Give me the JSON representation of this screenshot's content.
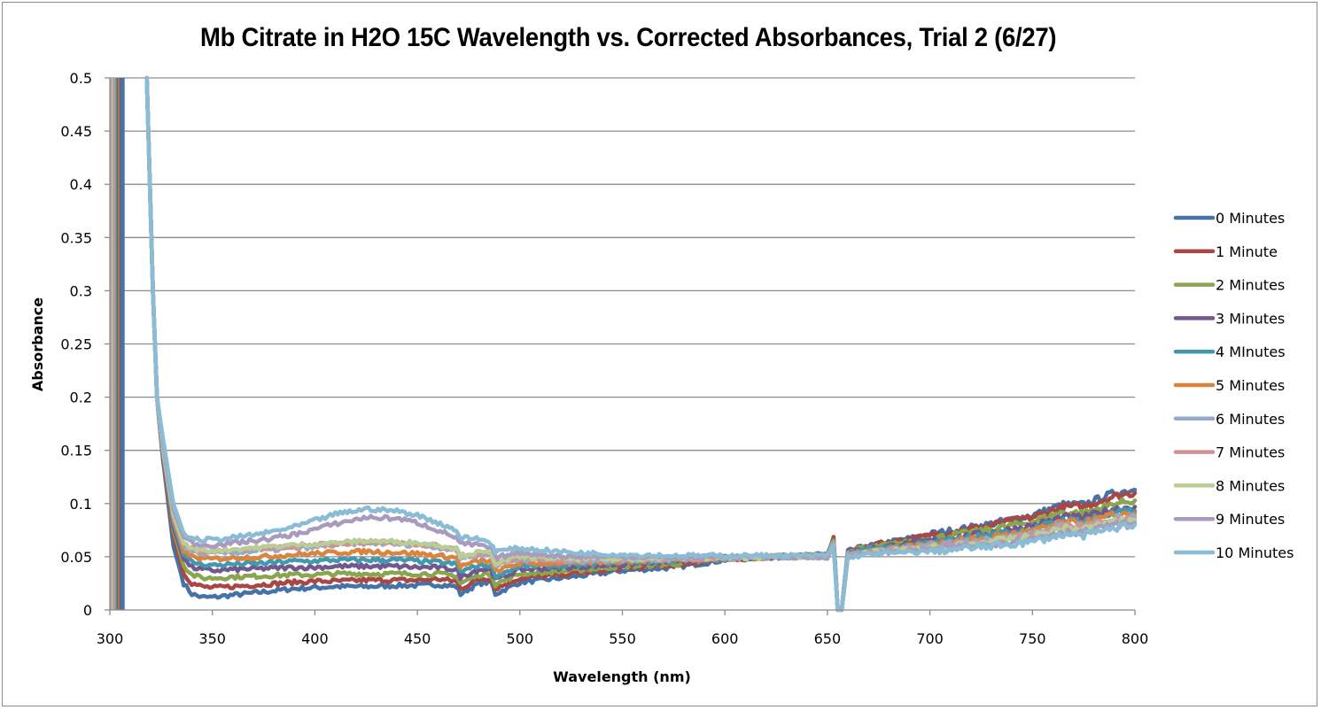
{
  "chart_data": {
    "type": "line",
    "title": "Mb Citrate in H2O 15C Wavelength vs. Corrected Absorbances, Trial 2 (6/27)",
    "xlabel": "Wavelength (nm)",
    "ylabel": "Absorbance",
    "xlim": [
      300,
      800
    ],
    "ylim": [
      0,
      0.5
    ],
    "xticks": [
      300,
      350,
      400,
      450,
      500,
      550,
      600,
      650,
      700,
      750,
      800
    ],
    "xtick_labels": [
      "300",
      "350",
      "400",
      "450",
      "500",
      "550",
      "600",
      "650",
      "700",
      "750",
      "800"
    ],
    "yticks": [
      0,
      0.05,
      0.1,
      0.15,
      0.2,
      0.25,
      0.3,
      0.35,
      0.4,
      0.45,
      0.5
    ],
    "ytick_labels": [
      "0",
      "0.05",
      "0.1",
      "0.15",
      "0.2",
      "0.25",
      "0.3",
      "0.35",
      "0.4",
      "0.45",
      "0.5"
    ],
    "grid": "horizontal",
    "legend_position": "right",
    "x": [
      318,
      321,
      323,
      326,
      331,
      336,
      340,
      345,
      350,
      360,
      375,
      390,
      400,
      410,
      425,
      440,
      450,
      460,
      469,
      471,
      480,
      486,
      488,
      500,
      525,
      550,
      575,
      600,
      625,
      650,
      653,
      655,
      657,
      660,
      665,
      675,
      700,
      725,
      750,
      765,
      775,
      790,
      800
    ],
    "series": [
      {
        "name": "0 Minutes",
        "color": "#4572a7",
        "values": [
          0.5,
          0.3,
          0.2,
          0.14,
          0.06,
          0.025,
          0.015,
          0.012,
          0.012,
          0.014,
          0.017,
          0.02,
          0.021,
          0.022,
          0.022,
          0.023,
          0.023,
          0.024,
          0.022,
          0.015,
          0.025,
          0.026,
          0.015,
          0.026,
          0.031,
          0.037,
          0.04,
          0.047,
          0.05,
          0.052,
          0.068,
          0.0,
          0.0,
          0.055,
          0.058,
          0.062,
          0.071,
          0.079,
          0.089,
          0.099,
          0.099,
          0.11,
          0.113
        ]
      },
      {
        "name": "1 Minute",
        "color": "#aa4643",
        "values": [
          0.5,
          0.3,
          0.2,
          0.14,
          0.07,
          0.035,
          0.025,
          0.022,
          0.021,
          0.022,
          0.024,
          0.026,
          0.027,
          0.027,
          0.028,
          0.028,
          0.028,
          0.029,
          0.027,
          0.02,
          0.029,
          0.03,
          0.02,
          0.03,
          0.034,
          0.039,
          0.042,
          0.048,
          0.05,
          0.052,
          0.067,
          0.0,
          0.0,
          0.055,
          0.058,
          0.062,
          0.07,
          0.078,
          0.087,
          0.097,
          0.097,
          0.107,
          0.11
        ]
      },
      {
        "name": "2 Minutes",
        "color": "#89a54e",
        "values": [
          0.5,
          0.3,
          0.2,
          0.14,
          0.075,
          0.042,
          0.033,
          0.03,
          0.03,
          0.031,
          0.032,
          0.033,
          0.033,
          0.034,
          0.034,
          0.034,
          0.034,
          0.034,
          0.032,
          0.025,
          0.033,
          0.034,
          0.024,
          0.034,
          0.037,
          0.041,
          0.043,
          0.048,
          0.05,
          0.051,
          0.066,
          0.0,
          0.0,
          0.054,
          0.057,
          0.06,
          0.067,
          0.074,
          0.083,
          0.092,
          0.091,
          0.1,
          0.103
        ]
      },
      {
        "name": "3 Minutes",
        "color": "#71588f",
        "values": [
          0.5,
          0.3,
          0.2,
          0.14,
          0.078,
          0.048,
          0.04,
          0.038,
          0.037,
          0.038,
          0.039,
          0.04,
          0.04,
          0.041,
          0.041,
          0.041,
          0.04,
          0.04,
          0.038,
          0.031,
          0.038,
          0.038,
          0.028,
          0.038,
          0.04,
          0.043,
          0.045,
          0.049,
          0.05,
          0.051,
          0.065,
          0.0,
          0.0,
          0.053,
          0.056,
          0.059,
          0.065,
          0.071,
          0.079,
          0.087,
          0.087,
          0.095,
          0.097
        ]
      },
      {
        "name": "4 MInutes",
        "color": "#4198af",
        "values": [
          0.5,
          0.3,
          0.2,
          0.145,
          0.082,
          0.052,
          0.045,
          0.043,
          0.042,
          0.043,
          0.044,
          0.046,
          0.046,
          0.047,
          0.047,
          0.047,
          0.046,
          0.045,
          0.043,
          0.036,
          0.042,
          0.042,
          0.032,
          0.041,
          0.042,
          0.045,
          0.046,
          0.049,
          0.05,
          0.051,
          0.064,
          0.0,
          0.0,
          0.053,
          0.055,
          0.058,
          0.063,
          0.069,
          0.076,
          0.084,
          0.084,
          0.091,
          0.093
        ]
      },
      {
        "name": "5 Minutes",
        "color": "#db843d",
        "values": [
          0.5,
          0.3,
          0.2,
          0.148,
          0.085,
          0.056,
          0.05,
          0.048,
          0.048,
          0.049,
          0.05,
          0.052,
          0.053,
          0.054,
          0.055,
          0.054,
          0.053,
          0.051,
          0.049,
          0.041,
          0.046,
          0.046,
          0.036,
          0.044,
          0.044,
          0.046,
          0.047,
          0.049,
          0.05,
          0.05,
          0.062,
          0.0,
          0.0,
          0.052,
          0.054,
          0.057,
          0.062,
          0.067,
          0.074,
          0.082,
          0.082,
          0.089,
          0.091
        ]
      },
      {
        "name": "6 Minutes",
        "color": "#93a9cf",
        "values": [
          0.5,
          0.3,
          0.2,
          0.15,
          0.088,
          0.06,
          0.055,
          0.053,
          0.053,
          0.054,
          0.056,
          0.058,
          0.059,
          0.061,
          0.063,
          0.062,
          0.061,
          0.059,
          0.056,
          0.049,
          0.052,
          0.051,
          0.042,
          0.048,
          0.046,
          0.047,
          0.048,
          0.049,
          0.05,
          0.05,
          0.062,
          0.0,
          0.0,
          0.052,
          0.053,
          0.056,
          0.06,
          0.065,
          0.071,
          0.079,
          0.079,
          0.086,
          0.088
        ]
      },
      {
        "name": "7 Minutes",
        "color": "#d19392",
        "values": [
          0.5,
          0.3,
          0.2,
          0.15,
          0.089,
          0.061,
          0.057,
          0.055,
          0.055,
          0.056,
          0.058,
          0.06,
          0.061,
          0.062,
          0.064,
          0.063,
          0.062,
          0.06,
          0.057,
          0.05,
          0.053,
          0.052,
          0.043,
          0.049,
          0.047,
          0.048,
          0.048,
          0.049,
          0.05,
          0.05,
          0.061,
          0.0,
          0.0,
          0.051,
          0.053,
          0.055,
          0.059,
          0.064,
          0.07,
          0.078,
          0.078,
          0.084,
          0.086
        ]
      },
      {
        "name": "8 Minutes",
        "color": "#b9cd96",
        "values": [
          0.5,
          0.3,
          0.2,
          0.15,
          0.09,
          0.062,
          0.058,
          0.056,
          0.056,
          0.057,
          0.059,
          0.061,
          0.062,
          0.063,
          0.065,
          0.064,
          0.063,
          0.061,
          0.058,
          0.051,
          0.054,
          0.053,
          0.044,
          0.05,
          0.048,
          0.048,
          0.049,
          0.049,
          0.05,
          0.05,
          0.061,
          0.0,
          0.0,
          0.051,
          0.052,
          0.055,
          0.058,
          0.063,
          0.069,
          0.077,
          0.076,
          0.083,
          0.085
        ]
      },
      {
        "name": "9 Minutes",
        "color": "#a99bbd",
        "values": [
          0.5,
          0.3,
          0.2,
          0.155,
          0.095,
          0.068,
          0.063,
          0.061,
          0.061,
          0.063,
          0.066,
          0.071,
          0.076,
          0.081,
          0.087,
          0.086,
          0.082,
          0.075,
          0.068,
          0.062,
          0.061,
          0.058,
          0.049,
          0.054,
          0.05,
          0.05,
          0.049,
          0.05,
          0.05,
          0.05,
          0.06,
          0.0,
          0.0,
          0.051,
          0.052,
          0.054,
          0.057,
          0.061,
          0.067,
          0.074,
          0.073,
          0.08,
          0.082
        ]
      },
      {
        "name": "10 Minutes",
        "color": "#8bbcd5",
        "values": [
          0.5,
          0.3,
          0.2,
          0.16,
          0.1,
          0.072,
          0.067,
          0.066,
          0.066,
          0.068,
          0.072,
          0.078,
          0.084,
          0.09,
          0.095,
          0.093,
          0.089,
          0.082,
          0.075,
          0.068,
          0.067,
          0.063,
          0.055,
          0.058,
          0.054,
          0.052,
          0.051,
          0.051,
          0.051,
          0.051,
          0.06,
          0.0,
          0.0,
          0.05,
          0.051,
          0.053,
          0.055,
          0.059,
          0.064,
          0.071,
          0.07,
          0.077,
          0.08
        ]
      }
    ],
    "offscale_band": {
      "x_range_nm": [
        300,
        307
      ],
      "note": "all series rise off-scale (above 0.5) between 300 and 307 nm"
    }
  }
}
